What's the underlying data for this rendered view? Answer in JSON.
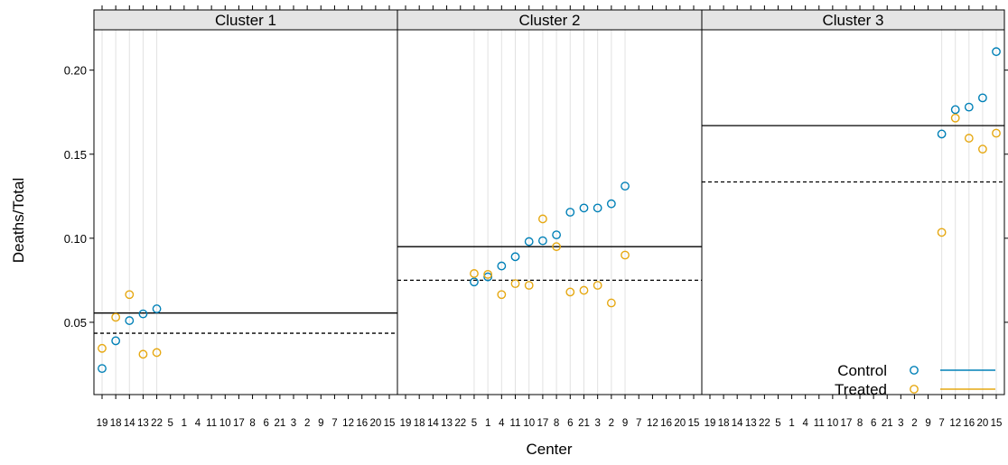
{
  "chart_data": {
    "type": "scatter",
    "xlabel": "Center",
    "ylabel": "Deaths/Total",
    "ylim": [
      0.007,
      0.224
    ],
    "yticks": [
      0.05,
      0.1,
      0.15,
      0.2
    ],
    "ytick_labels": [
      "0.05",
      "0.10",
      "0.15",
      "0.20"
    ],
    "categories": [
      "19",
      "18",
      "14",
      "13",
      "22",
      "5",
      "1",
      "4",
      "11",
      "10",
      "17",
      "8",
      "6",
      "21",
      "3",
      "2",
      "9",
      "7",
      "12",
      "16",
      "20",
      "15"
    ],
    "panels": [
      {
        "title": "Cluster 1",
        "control": [
          [
            "19",
            0.0225
          ],
          [
            "18",
            0.039
          ],
          [
            "14",
            0.051
          ],
          [
            "13",
            0.055
          ],
          [
            "22",
            0.058
          ]
        ],
        "treated": [
          [
            "19",
            0.0345
          ],
          [
            "18",
            0.053
          ],
          [
            "14",
            0.0665
          ],
          [
            "13",
            0.031
          ],
          [
            "22",
            0.032
          ]
        ],
        "control_mean": 0.0555,
        "treated_mean": 0.0435
      },
      {
        "title": "Cluster 2",
        "control": [
          [
            "5",
            0.074
          ],
          [
            "1",
            0.077
          ],
          [
            "4",
            0.0835
          ],
          [
            "11",
            0.089
          ],
          [
            "10",
            0.098
          ],
          [
            "17",
            0.0985
          ],
          [
            "8",
            0.102
          ],
          [
            "6",
            0.1155
          ],
          [
            "21",
            0.118
          ],
          [
            "3",
            0.118
          ],
          [
            "2",
            0.1205
          ],
          [
            "9",
            0.131
          ]
        ],
        "treated": [
          [
            "5",
            0.079
          ],
          [
            "1",
            0.0785
          ],
          [
            "4",
            0.0665
          ],
          [
            "11",
            0.073
          ],
          [
            "10",
            0.072
          ],
          [
            "17",
            0.1115
          ],
          [
            "8",
            0.095
          ],
          [
            "6",
            0.068
          ],
          [
            "21",
            0.069
          ],
          [
            "3",
            0.072
          ],
          [
            "2",
            0.0615
          ],
          [
            "9",
            0.09
          ]
        ],
        "control_mean": 0.095,
        "treated_mean": 0.075
      },
      {
        "title": "Cluster 3",
        "control": [
          [
            "7",
            0.162
          ],
          [
            "12",
            0.1765
          ],
          [
            "16",
            0.178
          ],
          [
            "20",
            0.1835
          ],
          [
            "15",
            0.211
          ]
        ],
        "treated": [
          [
            "7",
            0.1035
          ],
          [
            "12",
            0.1715
          ],
          [
            "16",
            0.1595
          ],
          [
            "20",
            0.153
          ],
          [
            "15",
            0.1625
          ]
        ],
        "control_mean": 0.167,
        "treated_mean": 0.1335
      }
    ],
    "legend": {
      "placement": "bottom-right",
      "items": [
        {
          "label": "Control",
          "color": "#0080b7"
        },
        {
          "label": "Treated",
          "color": "#e6a812"
        }
      ]
    },
    "colors": {
      "control": "#0080b7",
      "treated": "#e6a812",
      "strip": "#e5e5e5",
      "grid": "#e2e2e2"
    }
  }
}
